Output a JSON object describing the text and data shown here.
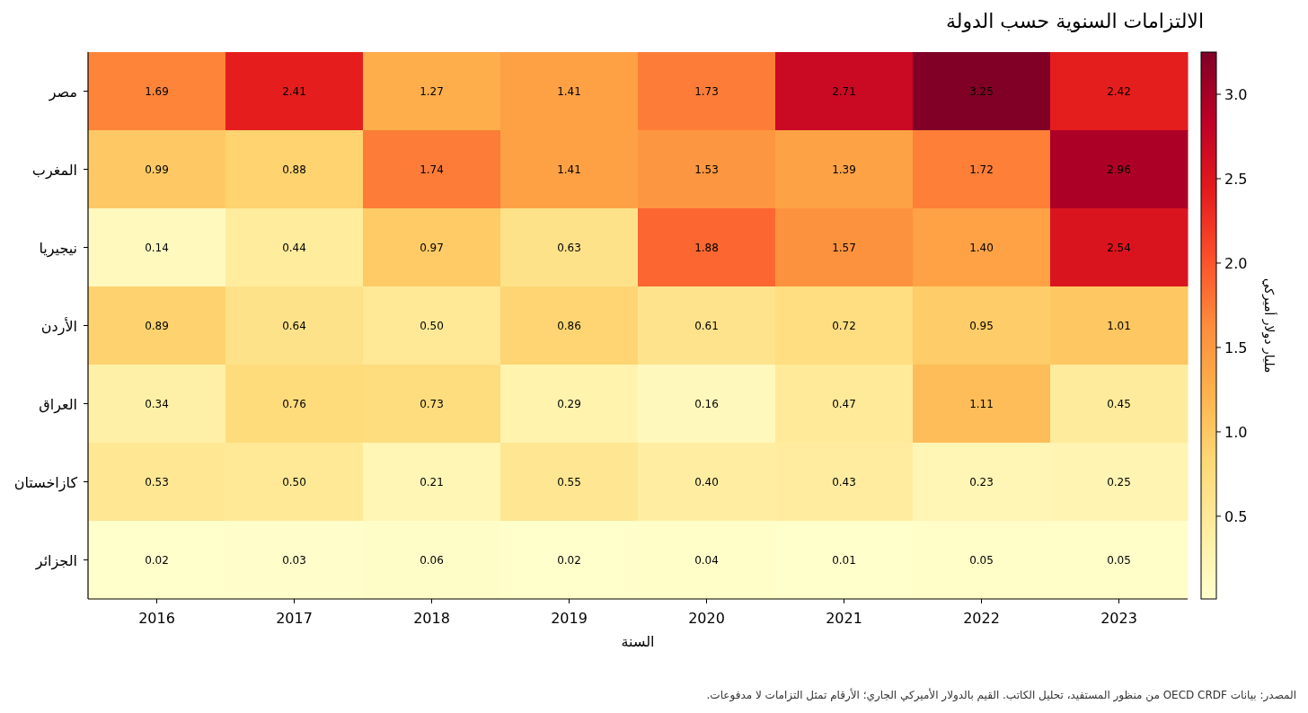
{
  "chart_data": {
    "type": "heatmap",
    "title": "الالتزامات السنوية حسب الدولة",
    "xlabel": "السنة",
    "clabel": "مليار دولار أميركي",
    "categories": [
      "2016",
      "2017",
      "2018",
      "2019",
      "2020",
      "2021",
      "2022",
      "2023"
    ],
    "y_categories": [
      "مصر",
      "المغرب",
      "نيجيريا",
      "الأردن",
      "العراق",
      "كازاخستان",
      "الجزائر"
    ],
    "cells": [
      [
        1.69,
        2.41,
        1.27,
        1.41,
        1.73,
        2.71,
        3.25,
        2.42
      ],
      [
        0.99,
        0.88,
        1.74,
        1.41,
        1.53,
        1.39,
        1.72,
        2.96
      ],
      [
        0.14,
        0.44,
        0.97,
        0.63,
        1.88,
        1.57,
        1.4,
        2.54
      ],
      [
        0.89,
        0.64,
        0.5,
        0.86,
        0.61,
        0.72,
        0.95,
        1.01
      ],
      [
        0.34,
        0.76,
        0.73,
        0.29,
        0.16,
        0.47,
        1.11,
        0.45
      ],
      [
        0.53,
        0.5,
        0.21,
        0.55,
        0.4,
        0.43,
        0.23,
        0.25
      ],
      [
        0.02,
        0.03,
        0.06,
        0.02,
        0.04,
        0.01,
        0.05,
        0.05
      ]
    ],
    "cell_labels": [
      [
        "1.69",
        "2.41",
        "1.27",
        "1.41",
        "1.73",
        "2.71",
        "3.25",
        "2.42"
      ],
      [
        "0.99",
        "0.88",
        "1.74",
        "1.41",
        "1.53",
        "1.39",
        "1.72",
        "2.96"
      ],
      [
        "0.14",
        "0.44",
        "0.97",
        "0.63",
        "1.88",
        "1.57",
        "1.40",
        "2.54"
      ],
      [
        "0.89",
        "0.64",
        "0.50",
        "0.86",
        "0.61",
        "0.72",
        "0.95",
        "1.01"
      ],
      [
        "0.34",
        "0.76",
        "0.73",
        "0.29",
        "0.16",
        "0.47",
        "1.11",
        "0.45"
      ],
      [
        "0.53",
        "0.50",
        "0.21",
        "0.55",
        "0.40",
        "0.43",
        "0.23",
        "0.25"
      ],
      [
        "0.02",
        "0.03",
        "0.06",
        "0.02",
        "0.04",
        "0.01",
        "0.05",
        "0.05"
      ]
    ],
    "clim": [
      0.01,
      3.25
    ],
    "cticks": [
      0.5,
      {
        "value": 1,
        "label": "1.0"
      },
      1.5,
      {
        "value": 2,
        "label": "2.0"
      },
      2.5,
      {
        "value": 3,
        "label": "3.0"
      }
    ],
    "annotations": [
      "المصدر: بيانات OECD CRDF من منظور المستفيد، تحليل الكاتب. القيم بالدولار الأميركي الجاري؛ الأرقام تمثل التزامات لا مدفوعات."
    ]
  }
}
